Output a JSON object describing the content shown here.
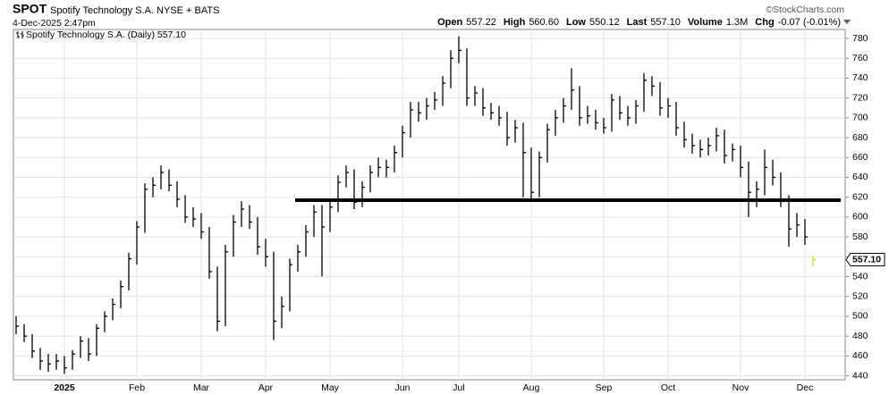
{
  "chart_data": {
    "type": "ohlc",
    "title": "SPOT",
    "subtitle": "Spotify Technology S.A. NYSE + BATS",
    "date": "4-Dec-2025 2:47pm",
    "source": "©StockCharts.com",
    "quote": [
      {
        "label": "Open",
        "value": 557.22
      },
      {
        "label": "High",
        "value": 560.6,
        "text": "560.60"
      },
      {
        "label": "Low",
        "value": 550.12
      },
      {
        "label": "Last",
        "value": 557.1,
        "text": "557.10"
      },
      {
        "label": "Volume",
        "text": "1.3M"
      },
      {
        "label": "Chg",
        "text": "-0.07 (-0.01%)"
      }
    ],
    "legend": "Spotify Technology S.A. (Daily) 557.10",
    "last_value_label": "557.10",
    "color": "#000000",
    "last_color": "#e6d800",
    "categories": [
      null,
      null,
      null,
      null,
      null,
      null,
      "2025",
      null,
      null,
      null,
      null,
      null,
      null,
      null,
      null,
      "Feb",
      null,
      null,
      null,
      null,
      null,
      null,
      null,
      "Mar",
      null,
      null,
      null,
      null,
      null,
      null,
      null,
      "Apr",
      null,
      null,
      null,
      null,
      null,
      null,
      null,
      "May",
      null,
      null,
      null,
      null,
      null,
      null,
      null,
      null,
      "Jun",
      null,
      null,
      null,
      null,
      null,
      null,
      "Jul",
      null,
      null,
      null,
      null,
      null,
      null,
      null,
      null,
      "Aug",
      null,
      null,
      null,
      null,
      null,
      null,
      null,
      null,
      "Sep",
      null,
      null,
      null,
      null,
      null,
      null,
      null,
      "Oct",
      null,
      null,
      null,
      null,
      null,
      null,
      null,
      null,
      "Nov",
      null,
      null,
      null,
      null,
      null,
      null,
      null,
      "Dec",
      null
    ],
    "close": [
      490,
      480,
      465,
      455,
      452,
      455,
      448,
      462,
      475,
      462,
      488,
      500,
      512,
      530,
      558,
      590,
      628,
      632,
      645,
      632,
      618,
      600,
      598,
      585,
      545,
      495,
      565,
      595,
      608,
      595,
      570,
      560,
      495,
      510,
      552,
      565,
      585,
      605,
      590,
      610,
      635,
      645,
      615,
      630,
      645,
      650,
      650,
      665,
      685,
      708,
      705,
      712,
      718,
      735,
      760,
      768,
      720,
      725,
      710,
      705,
      700,
      680,
      690,
      665,
      625,
      660,
      688,
      700,
      712,
      728,
      700,
      702,
      695,
      690,
      718,
      705,
      700,
      712,
      738,
      732,
      710,
      712,
      690,
      678,
      672,
      668,
      672,
      682,
      662,
      668,
      650,
      625,
      628,
      650,
      640,
      618,
      588,
      592,
      580,
      557.1
    ],
    "high": [
      500,
      492,
      482,
      468,
      462,
      462,
      460,
      466,
      480,
      478,
      492,
      505,
      518,
      536,
      564,
      596,
      634,
      640,
      652,
      648,
      636,
      622,
      610,
      604,
      590,
      550,
      572,
      602,
      616,
      612,
      600,
      578,
      565,
      520,
      558,
      572,
      592,
      612,
      612,
      618,
      642,
      652,
      648,
      636,
      652,
      660,
      658,
      672,
      692,
      716,
      716,
      720,
      726,
      742,
      768,
      782,
      770,
      732,
      730,
      715,
      712,
      706,
      698,
      695,
      670,
      666,
      694,
      708,
      720,
      750,
      732,
      712,
      708,
      700,
      724,
      722,
      712,
      718,
      745,
      742,
      736,
      720,
      716,
      696,
      684,
      678,
      680,
      690,
      688,
      674,
      672,
      656,
      636,
      668,
      658,
      645,
      622,
      604,
      598,
      560.6
    ],
    "low": [
      482,
      474,
      458,
      446,
      444,
      446,
      442,
      446,
      458,
      455,
      460,
      484,
      496,
      508,
      526,
      552,
      584,
      620,
      628,
      626,
      610,
      594,
      590,
      578,
      538,
      485,
      490,
      560,
      590,
      588,
      562,
      550,
      476,
      488,
      505,
      545,
      560,
      580,
      540,
      585,
      605,
      630,
      608,
      610,
      625,
      640,
      640,
      645,
      660,
      680,
      696,
      698,
      708,
      712,
      730,
      755,
      712,
      712,
      702,
      698,
      692,
      672,
      675,
      620,
      618,
      620,
      655,
      682,
      695,
      708,
      692,
      694,
      688,
      684,
      686,
      698,
      692,
      694,
      706,
      722,
      702,
      700,
      682,
      670,
      664,
      660,
      662,
      666,
      654,
      656,
      640,
      600,
      610,
      622,
      632,
      610,
      570,
      580,
      572,
      550.12
    ],
    "trendline": 617,
    "ylim": [
      436,
      789
    ],
    "yticks": [
      440,
      460,
      480,
      500,
      520,
      540,
      560,
      580,
      600,
      620,
      640,
      660,
      680,
      700,
      720,
      740,
      760,
      780
    ],
    "grid": true
  }
}
